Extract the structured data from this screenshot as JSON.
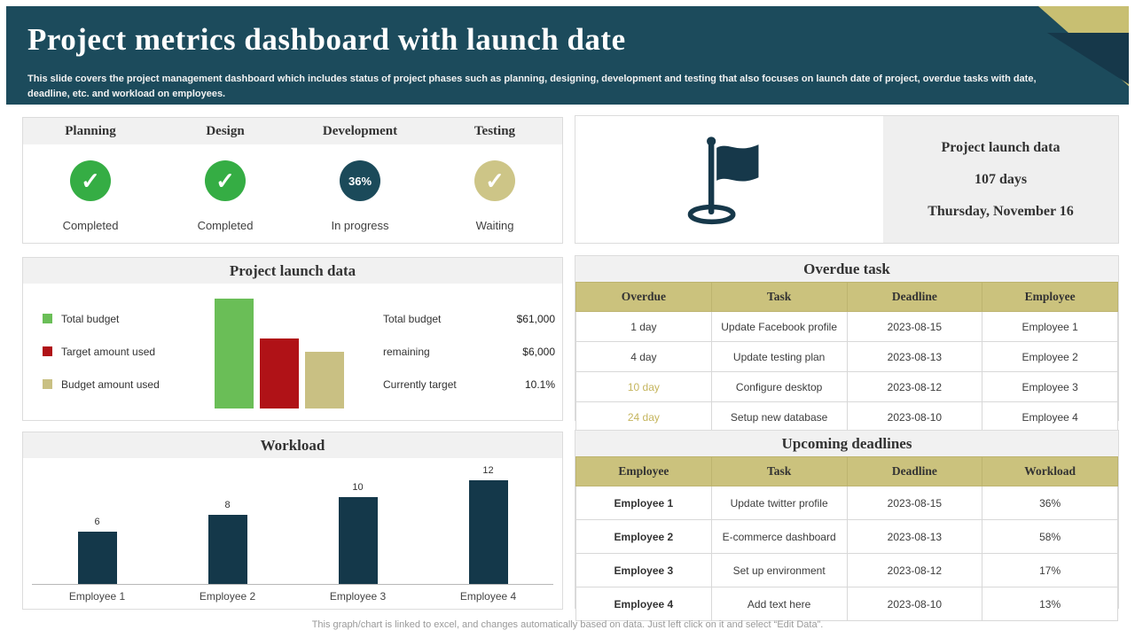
{
  "slide": {
    "title": "Project metrics dashboard with launch date",
    "subtitle": "This slide covers the project management dashboard which includes status of project phases such as planning, designing, development and testing that also focuses on launch date of project, overdue tasks with date, deadline, etc. and workload on employees.",
    "footer": "This graph/chart is linked to excel, and changes automatically based on data. Just left click on it and select “Edit Data”."
  },
  "colors": {
    "header_teal": "#1C4B5C",
    "dark_teal": "#16384A",
    "corner_khaki": "#C8BF72",
    "table_header_khaki": "#CBC27D",
    "status_green": "#35AD44",
    "status_khaki": "#CDC587",
    "accent_text_khaki": "#C5B55E"
  },
  "phases": {
    "items": [
      {
        "label": "Planning",
        "status": "Completed"
      },
      {
        "label": "Design",
        "status": "Completed"
      },
      {
        "label": "Development",
        "status": "In progress",
        "value": "36%"
      },
      {
        "label": "Testing",
        "status": "Waiting"
      }
    ]
  },
  "launch_panel": {
    "title": "Project launch data",
    "legend": [
      {
        "label": "Total budget",
        "color": "#6ABE57"
      },
      {
        "label": "Target amount used",
        "color": "#B01217"
      },
      {
        "label": "Budget amount used",
        "color": "#C9C083"
      }
    ],
    "stats": [
      {
        "label": "Total budget",
        "value": "$61,000"
      },
      {
        "label": "remaining",
        "value": "$6,000"
      },
      {
        "label": "Currently target",
        "value": "10.1%"
      }
    ]
  },
  "workload_panel": {
    "title": "Workload"
  },
  "launch_info": {
    "title": "Project launch data",
    "days": "107 days",
    "date": "Thursday, November 16"
  },
  "overdue_table": {
    "title": "Overdue task",
    "headers": [
      "Overdue",
      "Task",
      "Deadline",
      "Employee"
    ],
    "rows": [
      [
        "1 day",
        "Update Facebook profile",
        "2023-08-15",
        "Employee 1"
      ],
      [
        "4 day",
        "Update testing plan",
        "2023-08-13",
        "Employee 2"
      ],
      [
        "10 day",
        "Configure desktop",
        "2023-08-12",
        "Employee 3"
      ],
      [
        "24 day",
        "Setup new database",
        "2023-08-10",
        "Employee 4"
      ]
    ],
    "accent_rows": [
      2,
      3
    ]
  },
  "deadline_table": {
    "title": "Upcoming deadlines",
    "headers": [
      "Employee",
      "Task",
      "Deadline",
      "Workload"
    ],
    "rows": [
      [
        "Employee 1",
        "Update twitter profile",
        "2023-08-15",
        "36%"
      ],
      [
        "Employee 2",
        "E-commerce dashboard",
        "2023-08-13",
        "58%"
      ],
      [
        "Employee 3",
        "Set up environment",
        "2023-08-12",
        "17%"
      ],
      [
        "Employee 4",
        "Add text here",
        "2023-08-10",
        "13%"
      ]
    ],
    "first_col_bold": true
  },
  "chart_data": [
    {
      "id": "budget",
      "type": "bar",
      "title": "Project launch data",
      "categories": [
        "Total budget",
        "Target amount used",
        "Budget amount used"
      ],
      "values": [
        61000,
        39000,
        31500
      ],
      "colors": [
        "#6ABE57",
        "#B01217",
        "#C9C083"
      ],
      "labels_shown": {
        "Total budget": "$61,000",
        "remaining": "$6,000",
        "Currently target": "10.1%"
      },
      "legend_position": "left"
    },
    {
      "id": "workload",
      "type": "bar",
      "title": "Workload",
      "categories": [
        "Employee 1",
        "Employee 2",
        "Employee 3",
        "Employee 4"
      ],
      "values": [
        6,
        8,
        10,
        12
      ],
      "bar_color": "#14384A",
      "ylim": [
        0,
        12
      ],
      "grid": false
    }
  ]
}
